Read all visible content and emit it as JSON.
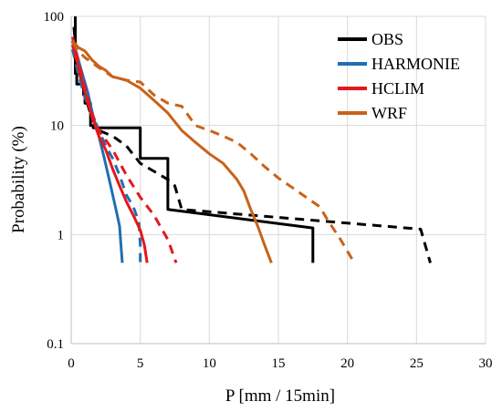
{
  "chart_data": {
    "type": "line",
    "title": "",
    "xlabel": "P [mm / 15min]",
    "ylabel": "Probability (%)",
    "xlim": [
      0,
      30
    ],
    "ylim": [
      0.1,
      100
    ],
    "y_scale": "log",
    "grid": true,
    "legend_position": "top-right",
    "x_ticks": [
      "0",
      "5",
      "10",
      "15",
      "20",
      "25",
      "30"
    ],
    "y_ticks": [
      "0.1",
      "1",
      "10",
      "100"
    ],
    "legend": [
      {
        "name": "OBS",
        "color": "#000000"
      },
      {
        "name": "HARMONIE",
        "color": "#1f6fb2"
      },
      {
        "name": "HCLIM",
        "color": "#e4181c"
      },
      {
        "name": "WRF",
        "color": "#c8621a"
      }
    ],
    "series": [
      {
        "name": "OBS",
        "style": "solid",
        "color": "#000000",
        "x": [
          0.3,
          0.3,
          0.4,
          0.4,
          0.9,
          0.9,
          1.0,
          1.0,
          1.4,
          1.4,
          1.6,
          1.6,
          5.0,
          5.0,
          7.0,
          7.0,
          17.5,
          17.5
        ],
        "y": [
          100,
          30,
          30,
          24,
          24,
          19,
          19,
          16,
          16,
          10,
          10,
          9.5,
          9.5,
          5.0,
          5.0,
          1.7,
          1.15,
          0.55
        ]
      },
      {
        "name": "OBS",
        "style": "dashed",
        "color": "#000000",
        "x": [
          0.2,
          0.4,
          0.7,
          1.0,
          1.3,
          1.6,
          2.0,
          3.0,
          4.0,
          5.0,
          6.0,
          7.0,
          7.5,
          8.0,
          25.3,
          26.0
        ],
        "y": [
          80,
          38,
          27,
          19,
          14,
          11,
          9.0,
          8.0,
          6.5,
          4.5,
          3.8,
          3.2,
          2.8,
          1.7,
          1.12,
          0.55
        ]
      },
      {
        "name": "HARMONIE",
        "style": "solid",
        "color": "#1f6fb2",
        "x": [
          0.1,
          0.4,
          0.8,
          1.2,
          1.6,
          2.0,
          2.4,
          2.8,
          3.2,
          3.5,
          3.6,
          3.7
        ],
        "y": [
          60,
          45,
          30,
          20,
          12,
          8,
          5,
          3,
          1.8,
          1.2,
          0.8,
          0.55
        ]
      },
      {
        "name": "HARMONIE",
        "style": "dashed",
        "color": "#1f6fb2",
        "x": [
          0.1,
          0.5,
          1.0,
          1.5,
          2.0,
          2.5,
          3.0,
          3.5,
          4.0,
          4.5,
          4.9,
          5.0,
          5.0
        ],
        "y": [
          50,
          30,
          18,
          13,
          9,
          6.5,
          5,
          3.5,
          2.3,
          1.8,
          1.3,
          0.8,
          0.55
        ]
      },
      {
        "name": "HCLIM",
        "style": "solid",
        "color": "#e4181c",
        "x": [
          0.1,
          0.5,
          1.0,
          1.5,
          2.0,
          2.5,
          3.0,
          3.5,
          4.0,
          4.5,
          5.0,
          5.3,
          5.5
        ],
        "y": [
          55,
          35,
          20,
          12,
          8,
          6,
          4,
          2.8,
          2,
          1.5,
          1.1,
          0.8,
          0.55
        ]
      },
      {
        "name": "HCLIM",
        "style": "dashed",
        "color": "#e4181c",
        "x": [
          0.1,
          0.5,
          1.0,
          1.5,
          2.0,
          3.0,
          4.0,
          5.0,
          6.0,
          7.0,
          7.6
        ],
        "y": [
          65,
          40,
          22,
          13,
          9,
          6,
          3.5,
          2.2,
          1.5,
          0.9,
          0.55
        ]
      },
      {
        "name": "WRF",
        "style": "solid",
        "color": "#c8621a",
        "x": [
          0.1,
          0.5,
          1.0,
          1.5,
          2.0,
          2.5,
          3.0,
          4.0,
          5.0,
          6.0,
          7.0,
          8.0,
          9.0,
          10.0,
          11.0,
          12.0,
          12.5,
          13.0,
          13.5,
          14.0,
          14.5
        ],
        "y": [
          60,
          52,
          48,
          40,
          35,
          32,
          28,
          26,
          22,
          17,
          13,
          9,
          7,
          5.5,
          4.5,
          3.2,
          2.5,
          1.7,
          1.2,
          0.8,
          0.55
        ]
      },
      {
        "name": "WRF",
        "style": "dashed",
        "color": "#c8621a",
        "x": [
          0.1,
          0.5,
          1.0,
          2.0,
          3.0,
          4.0,
          5.0,
          6.0,
          7.0,
          8.0,
          9.0,
          10.0,
          11.0,
          12.0,
          13.0,
          14.0,
          15.0,
          16.0,
          17.0,
          18.0,
          18.5,
          19.5,
          20.5
        ],
        "y": [
          58,
          48,
          42,
          34,
          28,
          26,
          25,
          19,
          16,
          15,
          10,
          9,
          8,
          7,
          5.5,
          4.2,
          3.3,
          2.7,
          2.2,
          1.8,
          1.4,
          0.9,
          0.55
        ]
      }
    ]
  }
}
